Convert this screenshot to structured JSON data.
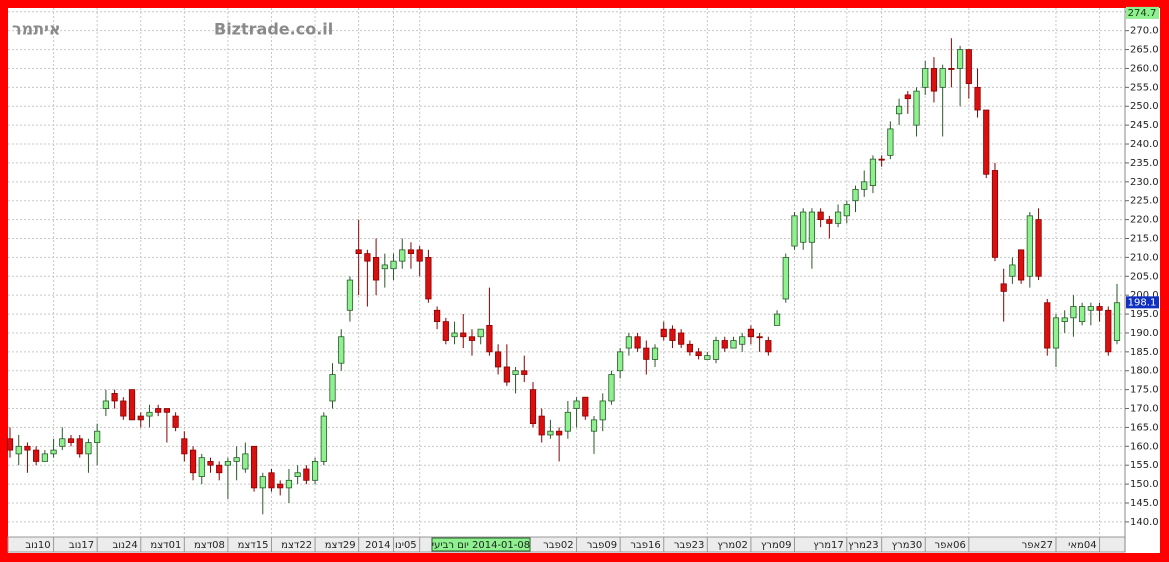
{
  "chart_data": {
    "type": "candlestick",
    "owner_label": "איתמר",
    "site_label": "Biztrade.co.il",
    "crosshair_label": "2014-01-08 יום רביעי",
    "categories": [
      null,
      null,
      null,
      null,
      null,
      "10נוב",
      null,
      null,
      null,
      null,
      "17נוב",
      null,
      null,
      null,
      null,
      "24נוב",
      null,
      null,
      null,
      null,
      "01דצמ",
      null,
      null,
      null,
      null,
      "08דצמ",
      null,
      null,
      null,
      null,
      "15דצמ",
      null,
      null,
      null,
      null,
      "22דצמ",
      null,
      null,
      null,
      null,
      "29דצמ",
      null,
      null,
      null,
      "2014",
      null,
      null,
      "05ינו",
      null,
      null,
      null,
      null,
      null,
      null,
      null,
      null,
      null,
      null,
      null,
      null,
      null,
      null,
      null,
      null,
      null,
      "02פבר",
      null,
      null,
      null,
      null,
      "09פבר",
      null,
      null,
      null,
      null,
      "16פבר",
      null,
      null,
      null,
      null,
      "23פבר",
      null,
      null,
      null,
      null,
      "02מרץ",
      null,
      null,
      null,
      null,
      "09מרץ",
      null,
      null,
      null,
      null,
      null,
      "17מרץ",
      null,
      null,
      null,
      "23מרץ",
      null,
      null,
      null,
      null,
      "30מרץ",
      null,
      null,
      null,
      null,
      "06אפר",
      null,
      null,
      null,
      null,
      null,
      null,
      null,
      null,
      null,
      "27אפר",
      null,
      null,
      null,
      null,
      "04מאי",
      null,
      null
    ],
    "open": [
      162,
      158,
      160,
      159,
      156,
      158,
      160,
      162,
      162,
      158,
      161,
      170,
      174,
      172,
      175,
      168,
      168,
      170,
      170,
      168,
      162,
      159,
      152,
      156,
      155,
      155,
      156,
      154,
      160,
      149,
      153,
      150,
      149,
      152,
      154,
      151,
      156,
      172,
      182,
      196,
      212,
      211,
      210,
      207,
      207,
      209,
      212,
      212,
      210,
      196,
      193,
      189,
      190,
      189,
      189,
      192,
      185,
      181,
      179,
      180,
      175,
      168,
      163,
      164,
      164,
      170,
      173,
      164,
      167,
      172,
      180,
      186,
      189,
      186,
      183,
      191,
      191,
      190,
      187,
      185,
      183,
      183,
      188,
      186,
      187,
      191,
      189,
      188,
      192,
      199,
      213,
      214,
      214,
      222,
      220,
      219,
      221,
      225,
      228,
      229,
      236,
      237,
      248,
      253,
      245,
      255,
      260,
      255,
      260,
      260,
      265,
      255,
      249,
      233,
      203,
      205,
      212,
      205,
      220,
      198,
      186,
      193,
      194,
      193,
      196,
      197,
      196,
      188
    ],
    "high": [
      165,
      163,
      161,
      160,
      159,
      162,
      165,
      163,
      163,
      162,
      166,
      175,
      175,
      173,
      175,
      169,
      171,
      171,
      170,
      169,
      164,
      160,
      158,
      157,
      156,
      157,
      160,
      161,
      160,
      153,
      154,
      151,
      154,
      155,
      155,
      157,
      169,
      182,
      191,
      205,
      220,
      212,
      215,
      211,
      211,
      215,
      214,
      213,
      212,
      197,
      194,
      193,
      195,
      191,
      191,
      202,
      187,
      187,
      181,
      184,
      177,
      170,
      167,
      165,
      172,
      173,
      173,
      168,
      174,
      180,
      186,
      190,
      190,
      188,
      187,
      193,
      192,
      191,
      188,
      186,
      185,
      189,
      189,
      189,
      190,
      192,
      190,
      189,
      196,
      211,
      222,
      223,
      223,
      223,
      221,
      224,
      225,
      229,
      233,
      237,
      237,
      246,
      252,
      254,
      255,
      262,
      263,
      261,
      268,
      266,
      265,
      260,
      249,
      235,
      207,
      210,
      212,
      222,
      223,
      199,
      195,
      196,
      200,
      198,
      198,
      198,
      197,
      203
    ],
    "low": [
      157,
      155,
      153,
      155,
      156,
      157,
      159,
      160,
      157,
      153,
      155,
      168,
      170,
      167,
      167,
      165,
      165,
      168,
      161,
      164,
      156,
      151,
      150,
      153,
      151,
      146,
      151,
      153,
      148,
      142,
      148,
      147,
      145,
      150,
      150,
      150,
      155,
      170,
      180,
      193,
      200,
      197,
      200,
      202,
      204,
      207,
      207,
      205,
      198,
      191,
      187,
      187,
      186,
      184,
      187,
      184,
      179,
      176,
      174,
      177,
      165,
      161,
      162,
      156,
      162,
      165,
      167,
      158,
      164,
      171,
      178,
      184,
      185,
      179,
      181,
      188,
      186,
      186,
      184,
      183,
      183,
      182,
      185,
      186,
      185,
      187,
      185,
      184,
      192,
      198,
      212,
      212,
      207,
      218,
      215,
      218,
      219,
      222,
      226,
      227,
      234,
      236,
      245,
      248,
      242,
      253,
      251,
      242,
      255,
      250,
      252,
      247,
      231,
      209,
      193,
      203,
      203,
      202,
      204,
      184,
      181,
      190,
      189,
      192,
      192,
      193,
      184,
      187
    ],
    "close": [
      159,
      160,
      159,
      156,
      158,
      159,
      162,
      161,
      158,
      161,
      164,
      172,
      172,
      168,
      167,
      167,
      169,
      169,
      169,
      165,
      158,
      153,
      157,
      155,
      153,
      156,
      157,
      158,
      149,
      152,
      149,
      149,
      151,
      153,
      151,
      156,
      168,
      179,
      189,
      204,
      211,
      209,
      204,
      208,
      209,
      212,
      211,
      209,
      199,
      193,
      188,
      190,
      189,
      188,
      191,
      185,
      181,
      177,
      180,
      179,
      166,
      163,
      164,
      163,
      169,
      172,
      168,
      167,
      172,
      179,
      185,
      189,
      186,
      183,
      186,
      189,
      188,
      187,
      185,
      184,
      184,
      188,
      186,
      188,
      189,
      189,
      189,
      185,
      195,
      210,
      221,
      222,
      222,
      220,
      219,
      222,
      224,
      228,
      230,
      236,
      236,
      244,
      250,
      252,
      254,
      260,
      254,
      260,
      260,
      265,
      256,
      249,
      232,
      210,
      201,
      208,
      204,
      221,
      205,
      186,
      194,
      194,
      197,
      197,
      197,
      196,
      185,
      198
    ],
    "up_color": "#8ef08e",
    "down_color": "#d81010",
    "ylim": [
      136,
      276
    ],
    "yticks": [
      {
        "value": 140,
        "label": "140.0"
      },
      {
        "value": 145,
        "label": "145.0"
      },
      {
        "value": 150,
        "label": "150.0"
      },
      {
        "value": 155,
        "label": "155.0"
      },
      {
        "value": 160,
        "label": "160.0"
      },
      {
        "value": 165,
        "label": "165.0"
      },
      {
        "value": 170,
        "label": "170.0"
      },
      {
        "value": 175,
        "label": "175.0"
      },
      {
        "value": 180,
        "label": "180.0"
      },
      {
        "value": 185,
        "label": "185.0"
      },
      {
        "value": 190,
        "label": "190.0"
      },
      {
        "value": 195,
        "label": "195.0"
      },
      {
        "value": 200,
        "label": "200.0"
      },
      {
        "value": 205,
        "label": "205.0"
      },
      {
        "value": 210,
        "label": "210.0"
      },
      {
        "value": 215,
        "label": "215.0"
      },
      {
        "value": 220,
        "label": "220.0"
      },
      {
        "value": 225,
        "label": "225.0"
      },
      {
        "value": 230,
        "label": "230.0"
      },
      {
        "value": 235,
        "label": "235.0"
      },
      {
        "value": 240,
        "label": "240.0"
      },
      {
        "value": 245,
        "label": "245.0"
      },
      {
        "value": 250,
        "label": "250.0"
      },
      {
        "value": 255,
        "label": "255.0"
      },
      {
        "value": 260,
        "label": "260.0"
      },
      {
        "value": 265,
        "label": "265.0"
      },
      {
        "value": 270,
        "label": "270.0"
      },
      {
        "value": 275,
        "label": "275.0"
      }
    ],
    "grid": true,
    "price_markers": [
      {
        "value": 274.7,
        "color": "#8ef08e"
      },
      {
        "value": 198.1,
        "color": "#1030c0"
      }
    ]
  }
}
